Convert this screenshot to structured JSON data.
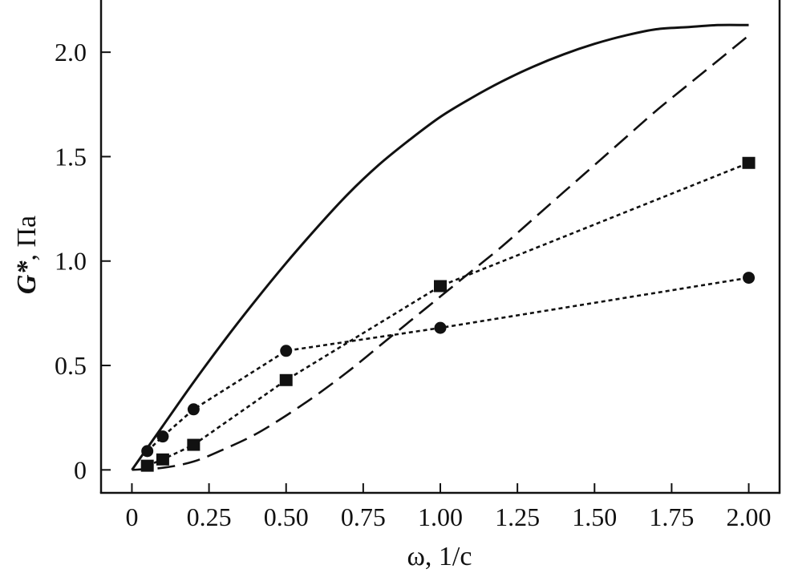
{
  "chart_data": {
    "type": "line",
    "xlabel": "ω, 1/с",
    "ylabel_italic": "G*",
    "ylabel_rest": ", Па",
    "xlim": [
      -0.1,
      2.1
    ],
    "ylim": [
      -0.11,
      2.25
    ],
    "x_ticks": [
      0,
      0.25,
      0.5,
      0.75,
      1.0,
      1.25,
      1.5,
      1.75,
      2.0
    ],
    "x_tick_labels": [
      "0",
      "0.25",
      "0.50",
      "0.75",
      "1.00",
      "1.25",
      "1.50",
      "1.75",
      "2.00"
    ],
    "y_ticks": [
      0,
      0.5,
      1.0,
      1.5,
      2.0
    ],
    "y_tick_labels": [
      "0",
      "0.5",
      "1.0",
      "1.5",
      "2.0"
    ],
    "grid": false,
    "legend": "none",
    "series": [
      {
        "line": "solid",
        "marker": "none",
        "x": [
          0,
          0.1,
          0.2,
          0.3,
          0.4,
          0.5,
          0.6,
          0.7,
          0.8,
          0.9,
          1.0,
          1.1,
          1.2,
          1.3,
          1.4,
          1.5,
          1.6,
          1.7,
          1.8,
          1.9,
          2.0
        ],
        "y": [
          0,
          0.21,
          0.42,
          0.62,
          0.81,
          0.99,
          1.16,
          1.32,
          1.46,
          1.58,
          1.69,
          1.78,
          1.86,
          1.93,
          1.99,
          2.04,
          2.08,
          2.11,
          2.12,
          2.13,
          2.13
        ]
      },
      {
        "line": "dashed",
        "marker": "none",
        "x": [
          0,
          0.1,
          0.2,
          0.3,
          0.4,
          0.5,
          0.6,
          0.7,
          0.8,
          0.9,
          1.0,
          1.1,
          1.2,
          1.3,
          1.4,
          1.5,
          1.6,
          1.7,
          1.8,
          1.9,
          2.0
        ],
        "y": [
          0,
          0.01,
          0.04,
          0.1,
          0.17,
          0.26,
          0.36,
          0.47,
          0.59,
          0.71,
          0.83,
          0.95,
          1.07,
          1.2,
          1.33,
          1.46,
          1.59,
          1.72,
          1.84,
          1.96,
          2.08
        ]
      },
      {
        "line": "dotted",
        "marker": "square",
        "x": [
          0.05,
          0.1,
          0.2,
          0.5,
          1.0,
          2.0
        ],
        "y": [
          0.02,
          0.05,
          0.12,
          0.43,
          0.88,
          1.47
        ]
      },
      {
        "line": "dotted",
        "marker": "circle",
        "x": [
          0.05,
          0.1,
          0.2,
          0.5,
          1.0,
          2.0
        ],
        "y": [
          0.09,
          0.16,
          0.29,
          0.57,
          0.68,
          0.92
        ]
      }
    ]
  }
}
